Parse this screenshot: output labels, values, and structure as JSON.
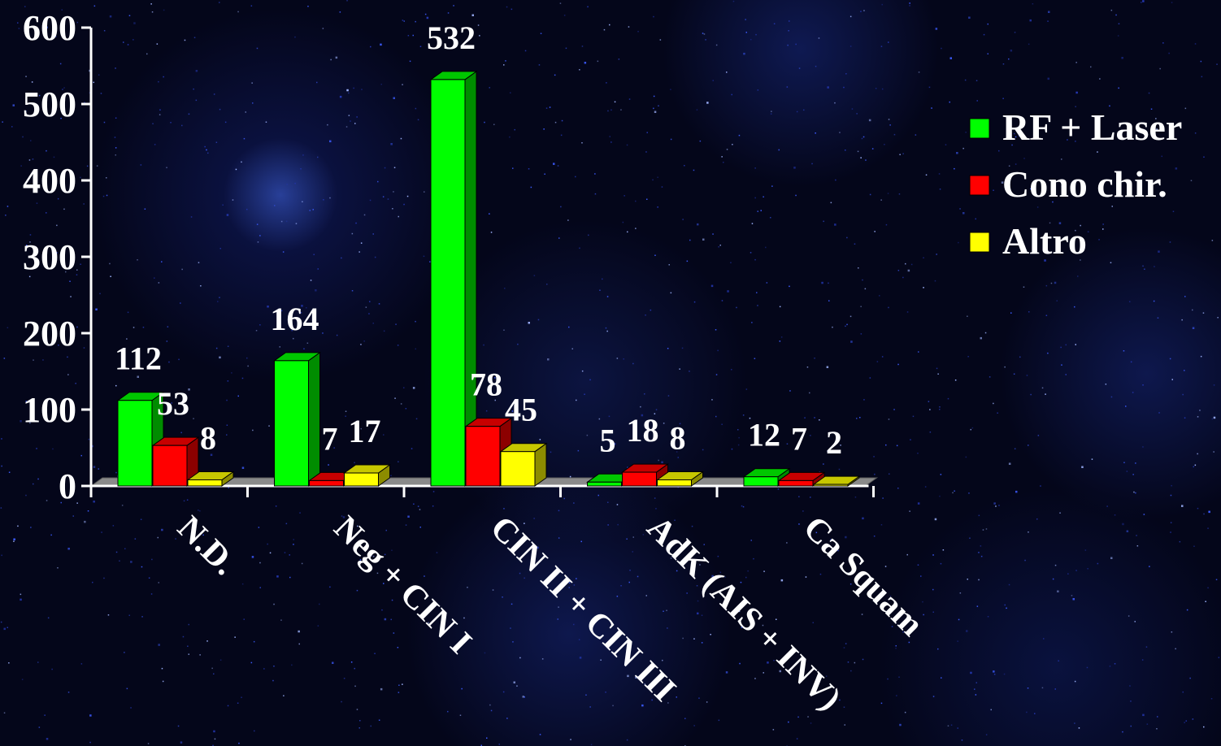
{
  "chart_data": {
    "type": "bar",
    "categories": [
      "N.D.",
      "Neg + CIN I",
      "CIN II + CIN III",
      "AdK (AIS + INV)",
      "Ca Squam"
    ],
    "series": [
      {
        "name": "RF + Laser",
        "color": "#00ff00",
        "values": [
          112,
          164,
          532,
          5,
          12
        ]
      },
      {
        "name": "Cono chir.",
        "color": "#ff0000",
        "values": [
          53,
          7,
          78,
          18,
          7
        ]
      },
      {
        "name": "Altro",
        "color": "#ffff00",
        "values": [
          8,
          17,
          45,
          8,
          2
        ]
      }
    ],
    "yticks": [
      0,
      100,
      200,
      300,
      400,
      500,
      600
    ],
    "ylim": [
      0,
      600
    ],
    "legend_position": "right",
    "grid": false,
    "title": "",
    "xlabel": "",
    "ylabel": ""
  }
}
